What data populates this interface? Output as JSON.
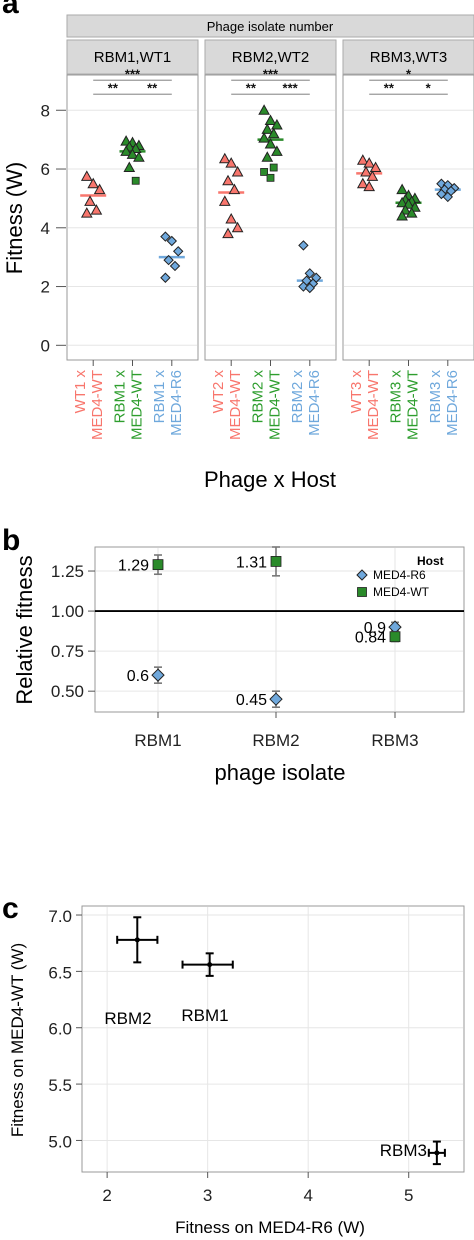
{
  "chart_data": [
    {
      "panel": "a",
      "type": "scatter",
      "strip_title": "Phage isolate number",
      "facets": [
        "RBM1,WT1",
        "RBM2,WT2",
        "RBM3,WT3"
      ],
      "xlabel": "Phage x Host",
      "ylabel": "Fitness (W)",
      "ylim": [
        -0.5,
        9.2
      ],
      "yticks": [
        0,
        2,
        4,
        6,
        8
      ],
      "colors": {
        "wt": "#f8766d",
        "rbm": "#2a8a2a",
        "r6": "#6fa8dc",
        "wt_text": "#f8766d",
        "rbm_text": "#2e9e2e",
        "r6_text": "#6fa8dc"
      },
      "groups": [
        {
          "facet": "RBM1,WT1",
          "categories": [
            {
              "line1": "WT1 x",
              "line2": "MED4-WT",
              "color": "wt",
              "shape": "triangle",
              "mean": 5.1,
              "points": [
                5.75,
                5.5,
                5.3,
                4.9,
                4.6,
                4.5
              ]
            },
            {
              "line1": "RBM1 x",
              "line2": "MED4-WT",
              "color": "rbm",
              "shape": "triangle",
              "mean": 6.6,
              "points": [
                6.95,
                6.9,
                6.8,
                6.75,
                6.7,
                6.6,
                6.5,
                6.4,
                6.05,
                5.6
              ]
            },
            {
              "line1": "RBM1 x",
              "line2": "MED4-R6",
              "color": "r6",
              "shape": "diamond",
              "mean": 3.0,
              "points": [
                3.7,
                3.55,
                3.2,
                2.9,
                2.7,
                2.3
              ]
            }
          ],
          "signif": [
            {
              "from": 0,
              "to": 2,
              "label": "***",
              "level": 2
            },
            {
              "from": 0,
              "to": 1,
              "label": "**",
              "level": 1
            },
            {
              "from": 1,
              "to": 2,
              "label": "**",
              "level": 1
            }
          ]
        },
        {
          "facet": "RBM2,WT2",
          "categories": [
            {
              "line1": "WT2 x",
              "line2": "MED4-WT",
              "color": "wt",
              "shape": "triangle",
              "mean": 5.2,
              "points": [
                6.35,
                6.2,
                5.9,
                5.6,
                5.3,
                4.9,
                4.3,
                4.0,
                3.8
              ]
            },
            {
              "line1": "RBM2 x",
              "line2": "MED4-WT",
              "color": "rbm",
              "shape": "triangle",
              "mean": 7.0,
              "points": [
                8.0,
                7.65,
                7.5,
                7.35,
                7.2,
                7.05,
                6.85,
                6.6,
                6.4,
                6.05,
                5.9,
                5.7
              ]
            },
            {
              "line1": "RBM2 x",
              "line2": "MED4-R6",
              "color": "r6",
              "shape": "diamond",
              "mean": 2.2,
              "points": [
                3.4,
                2.45,
                2.3,
                2.2,
                2.1,
                2.0,
                1.95
              ]
            }
          ],
          "signif": [
            {
              "from": 0,
              "to": 2,
              "label": "***",
              "level": 2
            },
            {
              "from": 0,
              "to": 1,
              "label": "**",
              "level": 1
            },
            {
              "from": 1,
              "to": 2,
              "label": "***",
              "level": 1
            }
          ]
        },
        {
          "facet": "RBM3,WT3",
          "categories": [
            {
              "line1": "WT3 x",
              "line2": "MED4-WT",
              "color": "wt",
              "shape": "triangle",
              "mean": 5.85,
              "points": [
                6.3,
                6.2,
                6.05,
                5.9,
                5.75,
                5.5,
                5.4
              ]
            },
            {
              "line1": "RBM3 x",
              "line2": "MED4-WT",
              "color": "rbm",
              "shape": "triangle",
              "mean": 4.85,
              "points": [
                5.3,
                5.1,
                5.0,
                4.95,
                4.9,
                4.85,
                4.8,
                4.7,
                4.6,
                4.5,
                4.4
              ]
            },
            {
              "line1": "RBM3 x",
              "line2": "MED4-R6",
              "color": "r6",
              "shape": "diamond",
              "mean": 5.3,
              "points": [
                5.5,
                5.45,
                5.35,
                5.3,
                5.25,
                5.15,
                5.05
              ]
            }
          ],
          "signif": [
            {
              "from": 0,
              "to": 2,
              "label": "*",
              "level": 2
            },
            {
              "from": 0,
              "to": 1,
              "label": "**",
              "level": 1
            },
            {
              "from": 1,
              "to": 2,
              "label": "*",
              "level": 1
            }
          ]
        }
      ]
    },
    {
      "panel": "b",
      "type": "scatter",
      "categories": [
        "RBM1",
        "RBM2",
        "RBM3"
      ],
      "xlabel": "phage isolate",
      "ylabel": "Relative fitness",
      "ylim": [
        0.37,
        1.4
      ],
      "yticks": [
        0.5,
        0.75,
        1.0,
        1.25
      ],
      "ytick_labels": [
        "0.50",
        "0.75",
        "1.00",
        "1.25"
      ],
      "reference_line": 1.0,
      "legend": {
        "title": "Host",
        "placement": "top-right"
      },
      "series": [
        {
          "name": "MED4-R6",
          "color": "#6fa8dc",
          "shape": "diamond",
          "values": [
            0.6,
            0.45,
            0.9
          ],
          "err_low": [
            0.55,
            0.4,
            0.88
          ],
          "err_high": [
            0.65,
            0.5,
            0.93
          ],
          "labels": [
            "0.6",
            "0.45",
            "0.9"
          ]
        },
        {
          "name": "MED4-WT",
          "color": "#2a8a2a",
          "shape": "square",
          "values": [
            1.29,
            1.31,
            0.84
          ],
          "err_low": [
            1.23,
            1.22,
            0.81
          ],
          "err_high": [
            1.35,
            1.4,
            0.87
          ],
          "labels": [
            "1.29",
            "1.31",
            "0.84"
          ]
        }
      ]
    },
    {
      "panel": "c",
      "type": "scatter",
      "xlabel": "Fitness on MED4-R6 (W)",
      "ylabel": "Fitness on MED4-WT (W)",
      "xlim": [
        1.75,
        5.55
      ],
      "ylim": [
        4.72,
        7.08
      ],
      "xticks": [
        2,
        3,
        4,
        5
      ],
      "yticks": [
        5.0,
        5.5,
        6.0,
        6.5,
        7.0
      ],
      "ytick_labels": [
        "5.0",
        "5.5",
        "6.0",
        "6.5",
        "7.0"
      ],
      "points": [
        {
          "label": "RBM1",
          "x": 3.02,
          "y": 6.56,
          "xerr": [
            2.75,
            3.25
          ],
          "yerr": [
            6.46,
            6.66
          ]
        },
        {
          "label": "RBM2",
          "x": 2.3,
          "y": 6.78,
          "xerr": [
            2.1,
            2.5
          ],
          "yerr": [
            6.58,
            6.98
          ]
        },
        {
          "label": "RBM3",
          "x": 5.28,
          "y": 4.89,
          "xerr": [
            5.2,
            5.36
          ],
          "yerr": [
            4.79,
            4.99
          ]
        }
      ]
    }
  ]
}
